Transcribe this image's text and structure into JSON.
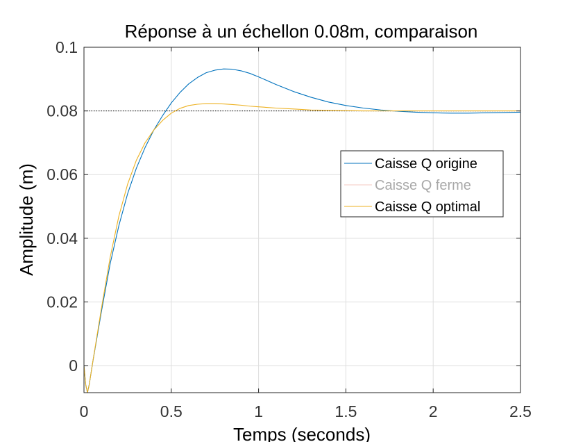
{
  "chart_data": {
    "type": "line",
    "title": "Réponse à un échellon 0.08m, comparaison",
    "xlabel": "Temps (seconds)",
    "ylabel": "Amplitude (m)",
    "xlim": [
      0,
      2.5
    ],
    "ylim": [
      -0.0085,
      0.1
    ],
    "xticks": [
      0,
      0.5,
      1,
      1.5,
      2,
      2.5
    ],
    "xtick_labels": [
      "0",
      "0.5",
      "1",
      "1.5",
      "2",
      "2.5"
    ],
    "yticks": [
      0,
      0.02,
      0.04,
      0.06,
      0.08,
      0.1
    ],
    "ytick_labels": [
      "0",
      "0.02",
      "0.04",
      "0.06",
      "0.08",
      "0.1"
    ],
    "grid": true,
    "legend_position": "right",
    "reference_line": {
      "y": 0.08,
      "style": "dotted",
      "color": "#000000"
    },
    "series": [
      {
        "name": "Caisse Q origine",
        "color": "#0072BD",
        "x": [
          0,
          0.01,
          0.02,
          0.03,
          0.05,
          0.1,
          0.15,
          0.2,
          0.25,
          0.3,
          0.35,
          0.4,
          0.45,
          0.5,
          0.55,
          0.6,
          0.65,
          0.7,
          0.75,
          0.8,
          0.85,
          0.9,
          0.95,
          1.0,
          1.1,
          1.2,
          1.3,
          1.4,
          1.5,
          1.6,
          1.7,
          1.8,
          1.9,
          2.0,
          2.1,
          2.2,
          2.3,
          2.4,
          2.5
        ],
        "y": [
          0,
          -0.006,
          -0.0085,
          -0.006,
          0.001,
          0.017,
          0.032,
          0.044,
          0.054,
          0.062,
          0.0685,
          0.074,
          0.0785,
          0.0825,
          0.0858,
          0.0885,
          0.0905,
          0.092,
          0.0928,
          0.0932,
          0.0931,
          0.0926,
          0.0918,
          0.0907,
          0.0883,
          0.0861,
          0.0843,
          0.0828,
          0.0817,
          0.0809,
          0.0803,
          0.0799,
          0.0796,
          0.0794,
          0.0793,
          0.0793,
          0.0794,
          0.0795,
          0.0796
        ]
      },
      {
        "name": "Caisse Q ferme",
        "color": "#F5C8C0",
        "faded": true,
        "x": [],
        "y": []
      },
      {
        "name": "Caisse Q optimal",
        "color": "#EDB120",
        "x": [
          0,
          0.01,
          0.02,
          0.03,
          0.05,
          0.1,
          0.15,
          0.2,
          0.25,
          0.3,
          0.35,
          0.4,
          0.45,
          0.5,
          0.55,
          0.6,
          0.65,
          0.7,
          0.75,
          0.8,
          0.85,
          0.9,
          0.95,
          1.0,
          1.1,
          1.2,
          1.3,
          1.4,
          1.5,
          1.6,
          1.8,
          2.0,
          2.2,
          2.5
        ],
        "y": [
          0,
          -0.006,
          -0.0085,
          -0.006,
          0.001,
          0.018,
          0.034,
          0.047,
          0.057,
          0.0645,
          0.07,
          0.074,
          0.077,
          0.0793,
          0.0808,
          0.0817,
          0.0821,
          0.0823,
          0.0823,
          0.0822,
          0.082,
          0.0818,
          0.0815,
          0.0813,
          0.0809,
          0.0806,
          0.0803,
          0.0802,
          0.0801,
          0.08,
          0.08,
          0.08,
          0.08,
          0.08
        ]
      }
    ]
  }
}
